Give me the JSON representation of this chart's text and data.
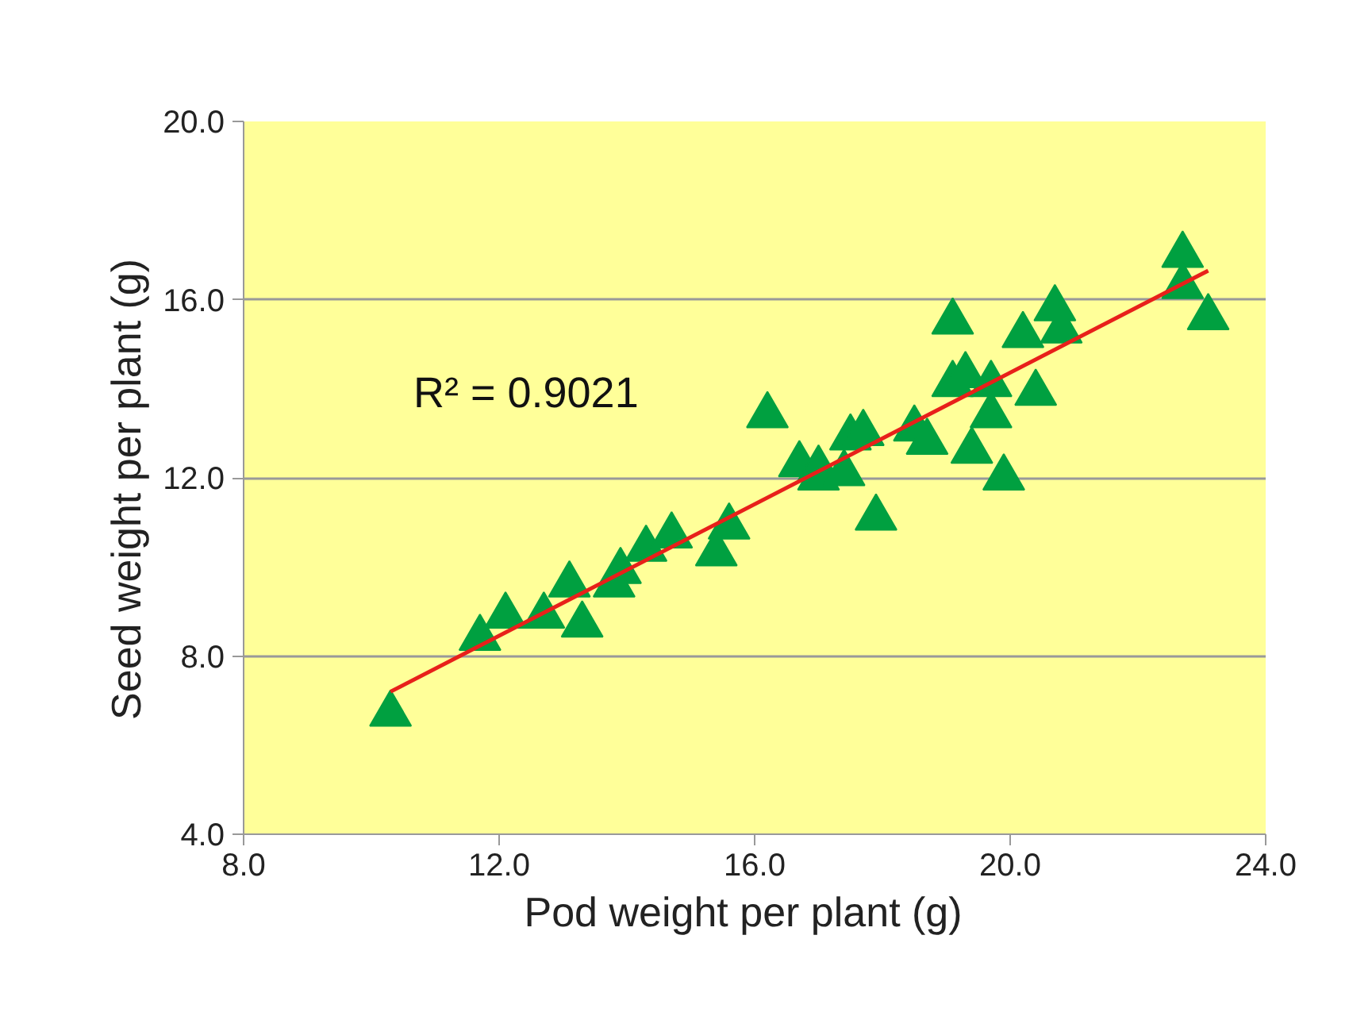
{
  "chart_data": {
    "type": "scatter",
    "xlabel": "Pod weight  per plant  (g)",
    "ylabel": "Seed weight  per plant  (g)",
    "xlim": [
      8,
      24
    ],
    "ylim": [
      4,
      20
    ],
    "xticks": [
      {
        "value": 8,
        "label": "8.0"
      },
      {
        "value": 12,
        "label": "12.0"
      },
      {
        "value": 16,
        "label": "16.0"
      },
      {
        "value": 20,
        "label": "20.0"
      },
      {
        "value": 24,
        "label": "24.0"
      }
    ],
    "yticks": [
      {
        "value": 4,
        "label": "4.0"
      },
      {
        "value": 8,
        "label": "8.0"
      },
      {
        "value": 12,
        "label": "12.0"
      },
      {
        "value": 16,
        "label": "16.0"
      },
      {
        "value": 20,
        "label": "20.0"
      }
    ],
    "grid": "y",
    "series": [
      {
        "marker": "triangle",
        "color": "#00a040",
        "x": [
          10.3,
          11.7,
          12.1,
          12.7,
          13.3,
          13.1,
          13.9,
          13.8,
          14.3,
          14.7,
          15.4,
          15.6,
          16.2,
          16.7,
          17.0,
          17.0,
          17.4,
          17.5,
          17.7,
          17.9,
          18.5,
          18.7,
          19.1,
          19.1,
          19.3,
          19.7,
          19.7,
          19.4,
          19.9,
          20.2,
          20.4,
          20.7,
          20.8,
          22.7,
          22.7,
          23.1
        ],
        "values": [
          6.7,
          8.4,
          8.9,
          8.9,
          8.7,
          9.6,
          9.9,
          9.6,
          10.4,
          10.7,
          10.3,
          10.9,
          13.4,
          12.3,
          12.0,
          12.2,
          12.1,
          12.9,
          13.0,
          11.1,
          13.1,
          12.8,
          15.5,
          14.1,
          14.3,
          14.1,
          13.4,
          12.6,
          12.0,
          15.2,
          13.9,
          15.8,
          15.3,
          17.0,
          16.3,
          15.6
        ]
      },
      {
        "type": "line",
        "marker": "none",
        "color": "#e8201a",
        "x": [
          10.3,
          23.1
        ],
        "values": [
          7.2,
          16.65
        ]
      }
    ],
    "annotations": [
      "R² = 0.9021"
    ]
  }
}
